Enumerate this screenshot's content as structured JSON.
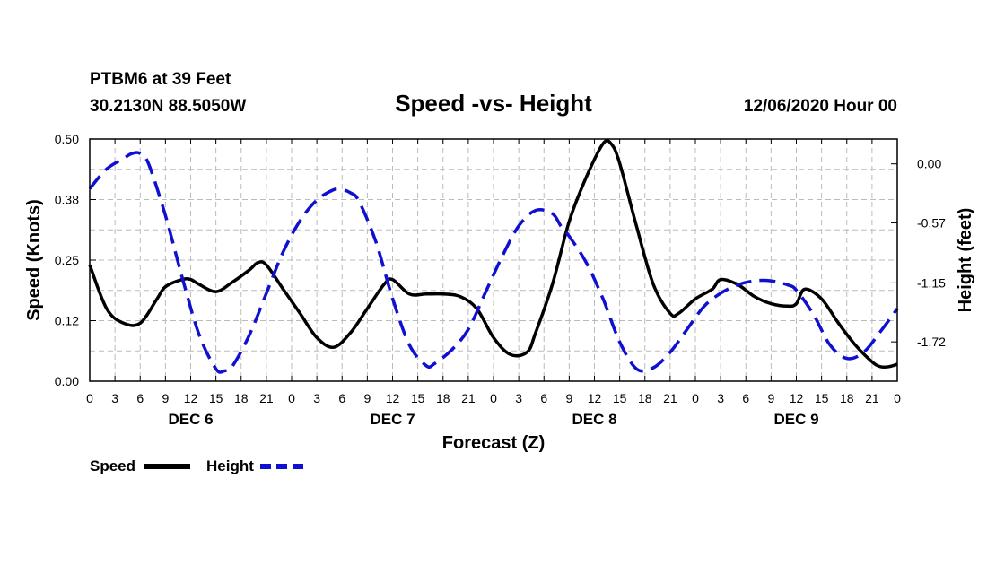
{
  "header": {
    "station": "PTBM6 at 39 Feet",
    "coords": "30.2130N 88.5050W",
    "datetime": "12/06/2020 Hour 00"
  },
  "colors": {
    "speed": "#000000",
    "height": "#1010d0",
    "grid": "#bbbbbb"
  },
  "chart_data": {
    "type": "line",
    "title": "Speed -vs- Height",
    "xlabel": "Forecast (Z)",
    "ylabel": "Speed (Knots)",
    "y2label": "Height (feet)",
    "xlim": [
      0,
      96
    ],
    "ylim": [
      0.0,
      0.5
    ],
    "y2lim": [
      -2.1,
      0.24
    ],
    "x_tick_hours": [
      0,
      3,
      6,
      9,
      12,
      15,
      18,
      21,
      24,
      27,
      30,
      33,
      36,
      39,
      42,
      45,
      48,
      51,
      54,
      57,
      60,
      63,
      66,
      69,
      72,
      75,
      78,
      81,
      84,
      87,
      90,
      93,
      96
    ],
    "x_tick_labels": [
      "0",
      "3",
      "6",
      "9",
      "12",
      "15",
      "18",
      "21",
      "0",
      "3",
      "6",
      "9",
      "12",
      "15",
      "18",
      "21",
      "0",
      "3",
      "6",
      "9",
      "12",
      "15",
      "18",
      "21",
      "0",
      "3",
      "6",
      "9",
      "12",
      "15",
      "18",
      "21",
      "0"
    ],
    "day_labels": [
      {
        "label": "DEC 6",
        "hour": 12
      },
      {
        "label": "DEC 7",
        "hour": 36
      },
      {
        "label": "DEC 8",
        "hour": 60
      },
      {
        "label": "DEC 9",
        "hour": 84
      }
    ],
    "y_ticks": [
      0.0,
      0.125,
      0.25,
      0.375,
      0.5
    ],
    "y_tick_labels": [
      "0.00",
      "0.12",
      "0.25",
      "0.38",
      "0.50"
    ],
    "y2_ticks": [
      0.0,
      -0.57,
      -1.15,
      -1.72
    ],
    "y2_tick_labels": [
      "0.00",
      "-0.57",
      "-1.15",
      "-1.72"
    ],
    "series": [
      {
        "name": "Speed",
        "axis": "left",
        "style": "solid",
        "x": [
          0,
          2,
          4,
          6,
          8,
          9,
          11,
          12,
          13,
          15,
          17,
          19,
          20,
          21,
          23,
          25,
          27,
          29,
          31,
          33,
          35,
          36,
          38,
          40,
          42,
          44,
          46,
          48,
          50,
          52,
          53,
          55,
          57,
          59,
          61,
          62,
          63,
          65,
          67,
          69,
          70,
          72,
          74,
          75,
          77,
          79,
          81,
          83,
          84,
          85,
          87,
          89,
          91,
          93,
          94,
          95,
          96
        ],
        "y": [
          0.24,
          0.15,
          0.12,
          0.12,
          0.17,
          0.195,
          0.21,
          0.21,
          0.2,
          0.185,
          0.205,
          0.23,
          0.245,
          0.24,
          0.19,
          0.14,
          0.09,
          0.07,
          0.1,
          0.15,
          0.2,
          0.21,
          0.18,
          0.18,
          0.18,
          0.175,
          0.15,
          0.09,
          0.055,
          0.06,
          0.1,
          0.2,
          0.33,
          0.42,
          0.49,
          0.49,
          0.45,
          0.32,
          0.2,
          0.14,
          0.14,
          0.17,
          0.19,
          0.21,
          0.2,
          0.175,
          0.16,
          0.155,
          0.16,
          0.19,
          0.17,
          0.12,
          0.075,
          0.04,
          0.03,
          0.03,
          0.035
        ]
      },
      {
        "name": "Height",
        "axis": "right",
        "style": "dashed",
        "x": [
          0,
          2,
          4,
          5,
          6,
          7,
          9,
          11,
          13,
          15,
          16,
          17,
          19,
          21,
          23,
          25,
          27,
          29,
          30,
          31,
          32,
          34,
          36,
          38,
          40,
          41,
          43,
          45,
          47,
          49,
          51,
          53,
          55,
          56,
          57,
          59,
          61,
          63,
          65,
          67,
          69,
          71,
          73,
          75,
          77,
          79,
          81,
          83,
          84,
          86,
          88,
          90,
          92,
          94,
          96
        ],
        "y": [
          -0.24,
          -0.05,
          0.05,
          0.1,
          0.1,
          0.0,
          -0.5,
          -1.1,
          -1.65,
          -1.98,
          -2.0,
          -1.95,
          -1.65,
          -1.25,
          -0.85,
          -0.55,
          -0.35,
          -0.25,
          -0.25,
          -0.28,
          -0.36,
          -0.75,
          -1.3,
          -1.75,
          -1.95,
          -1.93,
          -1.8,
          -1.6,
          -1.25,
          -0.9,
          -0.6,
          -0.45,
          -0.48,
          -0.6,
          -0.7,
          -0.95,
          -1.3,
          -1.72,
          -1.98,
          -1.97,
          -1.82,
          -1.6,
          -1.38,
          -1.25,
          -1.17,
          -1.13,
          -1.13,
          -1.17,
          -1.22,
          -1.45,
          -1.75,
          -1.88,
          -1.82,
          -1.62,
          -1.4
        ]
      }
    ],
    "legend": [
      {
        "label": "Speed",
        "series": "Speed"
      },
      {
        "label": "Height",
        "series": "Height"
      }
    ]
  }
}
